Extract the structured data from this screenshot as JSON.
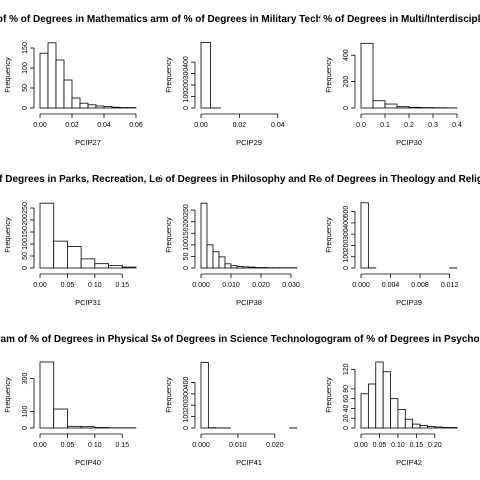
{
  "chart_data": [
    {
      "type": "bar",
      "title": "Histogram of % of Degrees in Mathematics and Statistics",
      "xlabel": "PCIP27",
      "ylabel": "Frequency",
      "bin_edges": [
        0,
        0.005,
        0.01,
        0.015,
        0.02,
        0.025,
        0.03,
        0.035,
        0.04,
        0.045,
        0.05,
        0.055,
        0.06
      ],
      "values": [
        137,
        163,
        120,
        70,
        25,
        12,
        8,
        5,
        4,
        2,
        1,
        1
      ],
      "xticks": [
        0.0,
        0.02,
        0.04,
        0.06
      ],
      "xtick_labels": [
        "0.00",
        "0.02",
        "0.04",
        "0.06"
      ],
      "yticks": [
        0,
        50,
        100,
        150
      ],
      "xlim": [
        0,
        0.06
      ],
      "ylim": [
        0,
        165
      ]
    },
    {
      "type": "bar",
      "title": "Histogram of % of Degrees in Military Technologies",
      "xlabel": "PCIP29",
      "ylabel": "Frequency",
      "bin_edges": [
        0,
        0.005,
        0.01,
        0.015,
        0.02,
        0.025,
        0.03,
        0.035,
        0.04,
        0.045,
        0.05
      ],
      "values": [
        570,
        1,
        0,
        0,
        0,
        0,
        0,
        0,
        0,
        0
      ],
      "xticks": [
        0.0,
        0.02,
        0.04
      ],
      "xtick_labels": [
        "0.00",
        "0.02",
        "0.04"
      ],
      "yticks": [
        0,
        100,
        200,
        300,
        400
      ],
      "xlim": [
        0,
        0.05
      ],
      "ylim": [
        0,
        575
      ]
    },
    {
      "type": "bar",
      "title": "Histogram of % of Degrees in Multi/Interdisciplinary Studies",
      "xlabel": "PCIP30",
      "ylabel": "Frequency",
      "bin_edges": [
        0,
        0.05,
        0.1,
        0.15,
        0.2,
        0.25,
        0.3,
        0.35,
        0.4
      ],
      "values": [
        490,
        55,
        30,
        10,
        5,
        3,
        2,
        1
      ],
      "xticks": [
        0.0,
        0.1,
        0.2,
        0.3,
        0.4
      ],
      "xtick_labels": [
        "0.0",
        "0.1",
        "0.2",
        "0.3",
        "0.4"
      ],
      "yticks": [
        0,
        200,
        400
      ],
      "xlim": [
        0,
        0.4
      ],
      "ylim": [
        0,
        500
      ]
    },
    {
      "type": "bar",
      "title": "Histogram of % of Degrees in Parks, Recreation, Leisure and Fitness",
      "xlabel": "PCIP31",
      "ylabel": "Frequency",
      "bin_edges": [
        0,
        0.025,
        0.05,
        0.075,
        0.1,
        0.125,
        0.15,
        0.175
      ],
      "values": [
        270,
        112,
        90,
        38,
        18,
        11,
        4
      ],
      "xticks": [
        0.0,
        0.05,
        0.1,
        0.15
      ],
      "xtick_labels": [
        "0.00",
        "0.05",
        "0.10",
        "0.15"
      ],
      "yticks": [
        0,
        50,
        100,
        150,
        200,
        250
      ],
      "xlim": [
        0,
        0.175
      ],
      "ylim": [
        0,
        275
      ]
    },
    {
      "type": "bar",
      "title": "Histogram of % of Degrees in Philosophy and Religious Studies",
      "xlabel": "PCIP38",
      "ylabel": "Frequency",
      "bin_edges": [
        0,
        0.002,
        0.004,
        0.006,
        0.008,
        0.01,
        0.012,
        0.014,
        0.016,
        0.018,
        0.02,
        0.022,
        0.024,
        0.026,
        0.028,
        0.03,
        0.032
      ],
      "values": [
        280,
        100,
        70,
        48,
        18,
        10,
        6,
        5,
        4,
        2,
        2,
        1,
        1,
        1,
        1,
        1
      ],
      "xticks": [
        0.0,
        0.01,
        0.02,
        0.03
      ],
      "xtick_labels": [
        "0.000",
        "0.010",
        "0.020",
        "0.030"
      ],
      "yticks": [
        0,
        50,
        100,
        150,
        200,
        250
      ],
      "xlim": [
        0,
        0.032
      ],
      "ylim": [
        0,
        285
      ]
    },
    {
      "type": "bar",
      "title": "Histogram of % of Degrees in Theology and Religious Vocations",
      "xlabel": "PCIP39",
      "ylabel": "Frequency",
      "bin_edges": [
        0,
        0.001,
        0.002,
        0.003,
        0.004,
        0.005,
        0.006,
        0.007,
        0.008,
        0.009,
        0.01,
        0.011,
        0.012,
        0.013
      ],
      "values": [
        578,
        1,
        0,
        0,
        0,
        0,
        0,
        0,
        0,
        0,
        0,
        0,
        1
      ],
      "xticks": [
        0.0,
        0.004,
        0.008,
        0.012
      ],
      "xtick_labels": [
        "0.000",
        "0.004",
        "0.008",
        "0.012"
      ],
      "yticks": [
        0,
        100,
        200,
        300,
        400,
        500
      ],
      "xlim": [
        0,
        0.013
      ],
      "ylim": [
        0,
        585
      ]
    },
    {
      "type": "bar",
      "title": "Histogram of % of Degrees in Physical Sciences",
      "xlabel": "PCIP40",
      "ylabel": "Frequency",
      "bin_edges": [
        0,
        0.025,
        0.05,
        0.075,
        0.1,
        0.125,
        0.15,
        0.175
      ],
      "values": [
        400,
        115,
        10,
        8,
        3,
        1,
        1
      ],
      "xticks": [
        0.0,
        0.05,
        0.1,
        0.15
      ],
      "xtick_labels": [
        "0.00",
        "0.05",
        "0.10",
        "0.15"
      ],
      "yticks": [
        0,
        100,
        300
      ],
      "xlim": [
        0,
        0.175
      ],
      "ylim": [
        0,
        400
      ]
    },
    {
      "type": "bar",
      "title": "Histogram of % of Degrees in Science Technologies/Technicians",
      "xlabel": "PCIP41",
      "ylabel": "Frequency",
      "bin_edges": [
        0,
        0.002,
        0.004,
        0.006,
        0.008,
        0.01,
        0.012,
        0.014,
        0.016,
        0.018,
        0.02,
        0.022,
        0.024,
        0.026
      ],
      "values": [
        575,
        3,
        1,
        1,
        0,
        0,
        0,
        0,
        0,
        0,
        0,
        0,
        1
      ],
      "xticks": [
        0.0,
        0.01,
        0.02
      ],
      "xtick_labels": [
        "0.000",
        "0.010",
        "0.020"
      ],
      "yticks": [
        0,
        100,
        200,
        300,
        400
      ],
      "xlim": [
        0,
        0.026
      ],
      "ylim": [
        0,
        580
      ]
    },
    {
      "type": "bar",
      "title": "Histogram of % of Degrees in Psychology",
      "xlabel": "PCIP42",
      "ylabel": "Frequency",
      "bin_edges": [
        0,
        0.02,
        0.04,
        0.06,
        0.08,
        0.1,
        0.12,
        0.14,
        0.16,
        0.18,
        0.2,
        0.22,
        0.24,
        0.26
      ],
      "values": [
        70,
        90,
        135,
        115,
        60,
        38,
        18,
        8,
        5,
        3,
        2,
        1,
        1
      ],
      "xticks": [
        0.0,
        0.05,
        0.1,
        0.15,
        0.2
      ],
      "xtick_labels": [
        "0.00",
        "0.05",
        "0.10",
        "0.15",
        "0.20"
      ],
      "yticks": [
        0,
        20,
        40,
        60,
        80,
        120
      ],
      "xlim": [
        0,
        0.26
      ],
      "ylim": [
        0,
        135
      ]
    }
  ]
}
